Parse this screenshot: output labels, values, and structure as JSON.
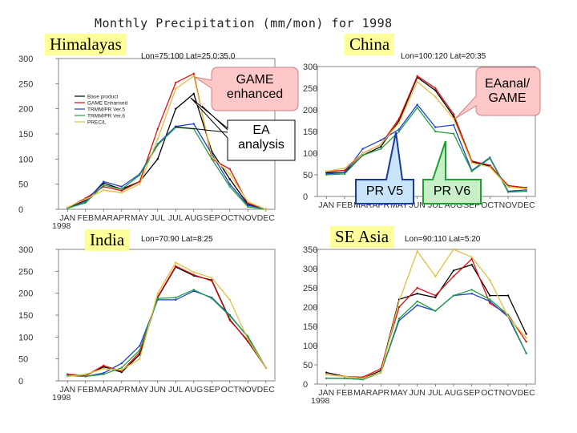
{
  "page": {
    "title": "Monthly Precipitation (mm/mon) for 1998",
    "callouts": {
      "game": "GAME enhanced",
      "ea": "EA analysis",
      "eaanal": "EAanal/ GAME",
      "pr5": "PR V5",
      "pr6": "PR V6"
    },
    "colors": {
      "base": "#000000",
      "game": "#e01010",
      "v5": "#2040d0",
      "v6": "#20a040",
      "prec": "#e0c040",
      "label_bg": "#ffff99"
    }
  },
  "chart_data": [
    {
      "type": "line",
      "region": "Himalayas",
      "coords": "Lon=75:100 Lat=25.0:35.0",
      "categories": [
        "JAN",
        "FEB",
        "MAR",
        "APR",
        "MAY",
        "JUL",
        "JUL",
        "AUG",
        "SEP",
        "OCT",
        "NOV",
        "DEC"
      ],
      "x_year_label": "1998",
      "ylim": [
        0,
        300
      ],
      "yticks": [
        0,
        50,
        100,
        150,
        200,
        250,
        300
      ],
      "legend": [
        "Base product",
        "GAME Enhansed",
        "TRMM/PR Ver.5",
        "TRMM/PR Ver.6",
        "PREC/L"
      ],
      "series": [
        {
          "name": "Base product",
          "color": "#000000",
          "values": [
            3,
            18,
            52,
            40,
            55,
            100,
            200,
            230,
            115,
            60,
            10,
            0
          ]
        },
        {
          "name": "GAME Enhansed",
          "color": "#e01010",
          "values": [
            3,
            22,
            45,
            37,
            55,
            160,
            252,
            270,
            100,
            80,
            12,
            0
          ]
        },
        {
          "name": "TRMM/PR Ver.5",
          "color": "#2040d0",
          "values": [
            2,
            15,
            55,
            45,
            70,
            130,
            165,
            170,
            110,
            50,
            8,
            0
          ]
        },
        {
          "name": "TRMM/PR Ver.6",
          "color": "#20a040",
          "values": [
            2,
            13,
            48,
            40,
            68,
            128,
            163,
            160,
            100,
            45,
            5,
            0
          ]
        },
        {
          "name": "PREC/L",
          "color": "#e0c040",
          "values": [
            4,
            20,
            38,
            33,
            50,
            140,
            240,
            265,
            105,
            70,
            15,
            0
          ]
        }
      ]
    },
    {
      "type": "line",
      "region": "China",
      "coords": "Lon=100:120 Lat=20:35",
      "categories": [
        "JAN",
        "FEB",
        "MAR",
        "APR",
        "MAY",
        "JUN",
        "JUL",
        "AUG",
        "SEP",
        "OCT",
        "NOV",
        "DEC"
      ],
      "x_year_label": "",
      "ylim": [
        0,
        300
      ],
      "yticks": [
        0,
        50,
        100,
        150,
        200,
        250,
        300
      ],
      "series": [
        {
          "name": "Base product",
          "color": "#000000",
          "values": [
            55,
            55,
            95,
            115,
            175,
            275,
            245,
            185,
            80,
            70,
            25,
            20
          ]
        },
        {
          "name": "GAME Enhansed",
          "color": "#e01010",
          "values": [
            58,
            60,
            100,
            120,
            180,
            278,
            250,
            190,
            82,
            72,
            25,
            20
          ]
        },
        {
          "name": "TRMM/PR Ver.5",
          "color": "#2040d0",
          "values": [
            52,
            55,
            110,
            130,
            155,
            212,
            160,
            165,
            60,
            90,
            12,
            15
          ]
        },
        {
          "name": "TRMM/PR Ver.6",
          "color": "#20a040",
          "values": [
            50,
            52,
            95,
            110,
            150,
            205,
            150,
            145,
            58,
            88,
            10,
            12
          ]
        },
        {
          "name": "PREC/L",
          "color": "#e0c040",
          "values": [
            58,
            65,
            100,
            120,
            170,
            265,
            230,
            180,
            78,
            68,
            22,
            18
          ]
        }
      ]
    },
    {
      "type": "line",
      "region": "India",
      "coords": "Lon=70:90 Lat=8:25",
      "categories": [
        "JAN",
        "FEB",
        "MAR",
        "APR",
        "MAY",
        "JUN",
        "JUL",
        "AUG",
        "SEP",
        "OCT",
        "NOV",
        "DEC"
      ],
      "x_year_label": "1998",
      "ylim": [
        0,
        300
      ],
      "yticks": [
        0,
        50,
        100,
        150,
        200,
        250,
        300
      ],
      "series": [
        {
          "name": "Base product",
          "color": "#000000",
          "values": [
            15,
            12,
            32,
            20,
            60,
            190,
            260,
            240,
            230,
            140,
            90,
            30
          ]
        },
        {
          "name": "GAME Enhansed",
          "color": "#e01010",
          "values": [
            15,
            12,
            35,
            22,
            65,
            192,
            262,
            242,
            228,
            138,
            92,
            30
          ]
        },
        {
          "name": "TRMM/PR Ver.5",
          "color": "#2040d0",
          "values": [
            12,
            10,
            18,
            40,
            80,
            185,
            185,
            205,
            190,
            150,
            100,
            30
          ]
        },
        {
          "name": "TRMM/PR Ver.6",
          "color": "#20a040",
          "values": [
            12,
            10,
            15,
            30,
            70,
            188,
            190,
            208,
            188,
            148,
            102,
            30
          ]
        },
        {
          "name": "PREC/L",
          "color": "#e0c040",
          "values": [
            10,
            15,
            28,
            25,
            50,
            200,
            270,
            248,
            235,
            185,
            95,
            30
          ]
        }
      ]
    },
    {
      "type": "line",
      "region": "SE Asia",
      "coords": "Lon=90:110 Lat=5:20",
      "categories": [
        "JAN",
        "FEB",
        "MAR",
        "APR",
        "MAY",
        "JUN",
        "JUL",
        "AUG",
        "SEP",
        "OCT",
        "NOV",
        "DEC"
      ],
      "x_year_label": "1998",
      "ylim": [
        0,
        350
      ],
      "yticks": [
        0,
        50,
        100,
        150,
        200,
        250,
        300,
        350
      ],
      "series": [
        {
          "name": "Base product",
          "color": "#000000",
          "values": [
            30,
            20,
            15,
            35,
            220,
            235,
            225,
            295,
            310,
            230,
            230,
            130
          ]
        },
        {
          "name": "GAME Enhansed",
          "color": "#e01010",
          "values": [
            25,
            20,
            18,
            40,
            200,
            250,
            230,
            280,
            325,
            210,
            180,
            110
          ]
        },
        {
          "name": "TRMM/PR Ver.5",
          "color": "#2040d0",
          "values": [
            15,
            15,
            12,
            30,
            165,
            205,
            190,
            230,
            235,
            215,
            175,
            80
          ]
        },
        {
          "name": "TRMM/PR Ver.6",
          "color": "#20a040",
          "values": [
            15,
            15,
            12,
            30,
            170,
            215,
            190,
            230,
            245,
            220,
            180,
            80
          ]
        },
        {
          "name": "PREC/L",
          "color": "#e0c040",
          "values": [
            25,
            20,
            15,
            30,
            215,
            345,
            280,
            350,
            330,
            270,
            175,
            120
          ]
        }
      ]
    }
  ]
}
